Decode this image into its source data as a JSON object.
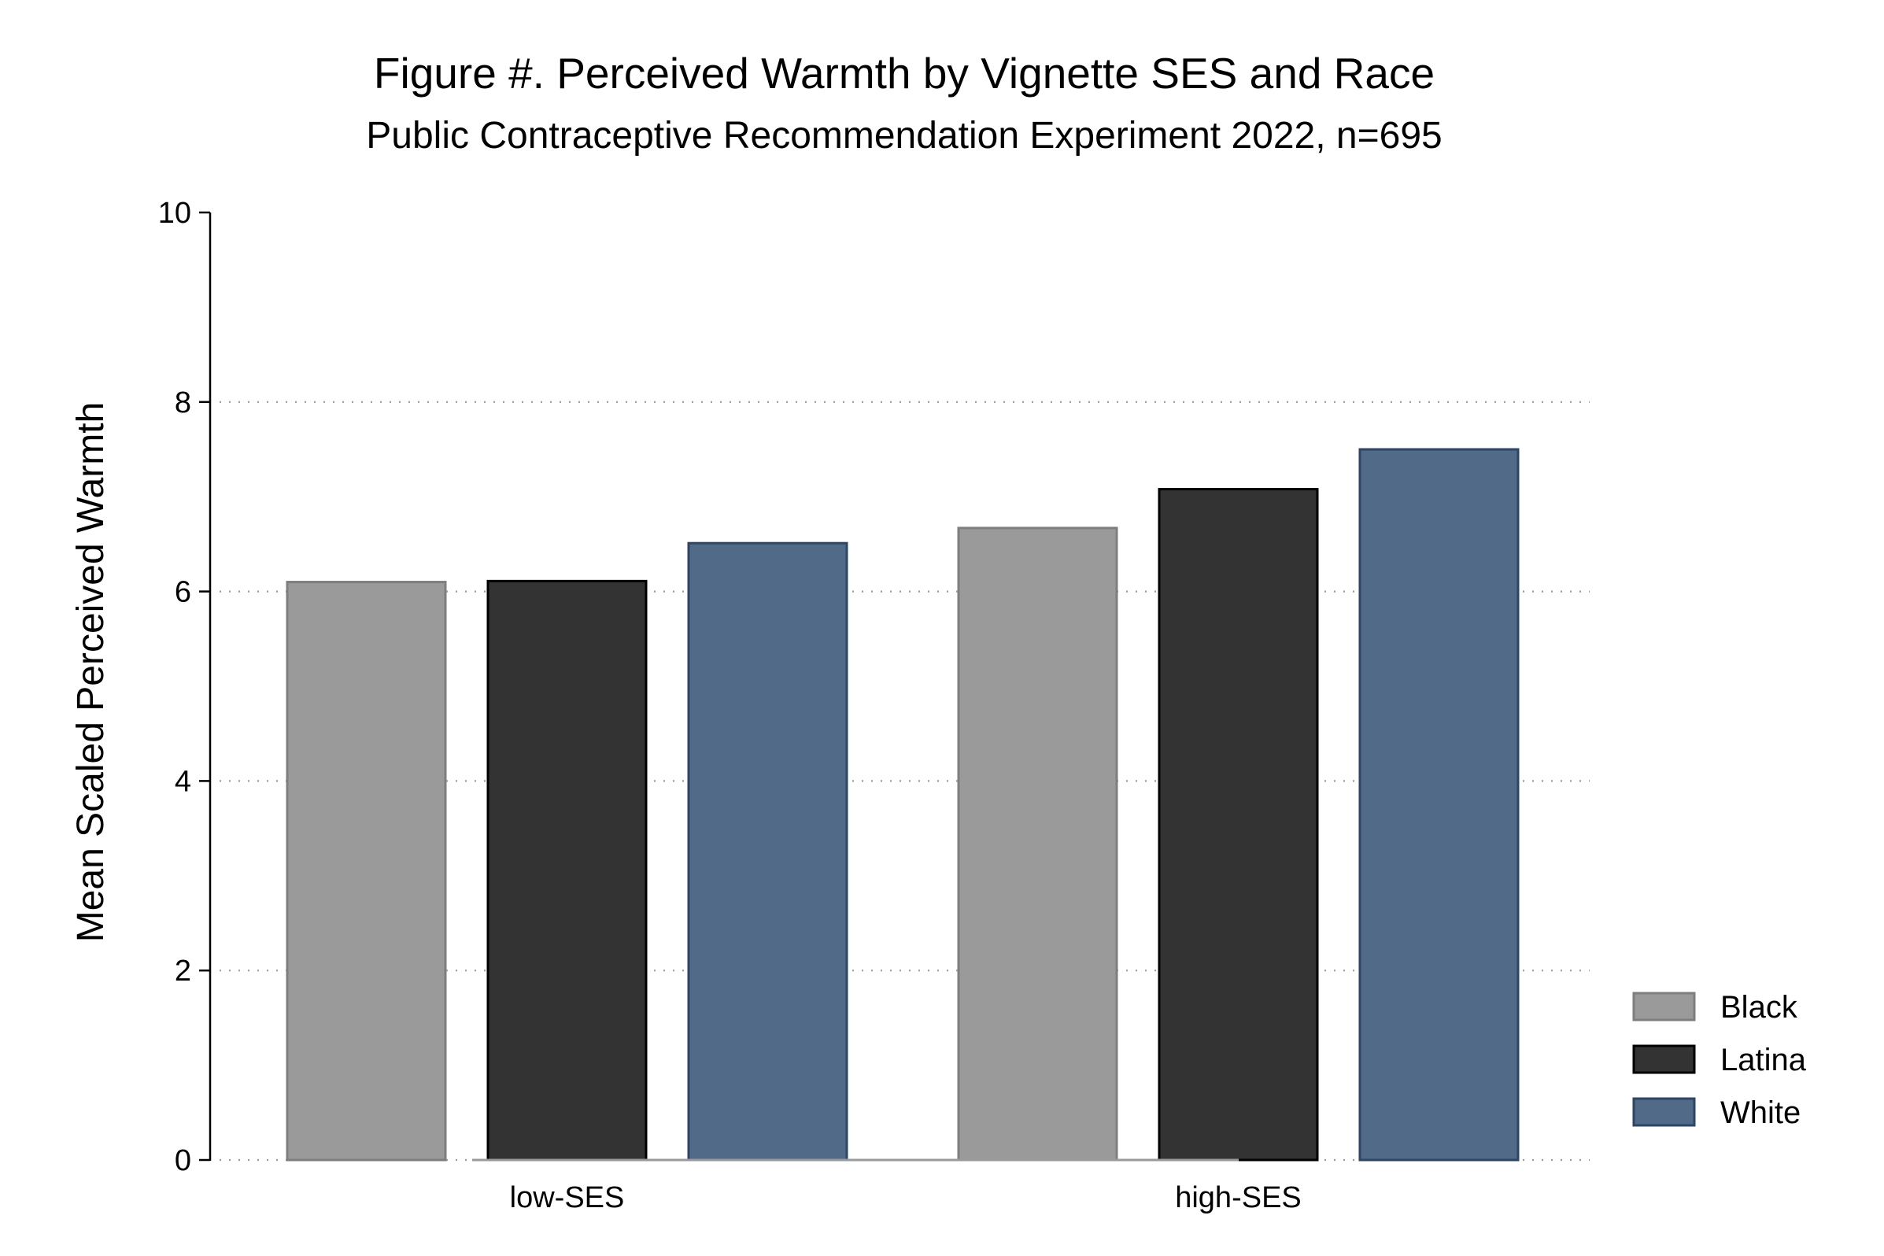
{
  "chart_data": {
    "type": "bar",
    "title": "Figure #. Perceived Warmth by Vignette SES and Race",
    "subtitle": "Public Contraceptive Recommendation Experiment 2022, n=695",
    "xlabel": "",
    "ylabel": "Mean Scaled Perceived Warmth",
    "categories": [
      "low-SES",
      "high-SES"
    ],
    "yticks": [
      "0",
      "2",
      "4",
      "6",
      "8",
      "10"
    ],
    "ylim": [
      0,
      10
    ],
    "grid": true,
    "legend_position": "right",
    "series": [
      {
        "name": "Black",
        "values": [
          6.1,
          6.67
        ],
        "color": "#9a9a9a",
        "stroke": "#7e7e7e"
      },
      {
        "name": "Latina",
        "values": [
          6.11,
          7.08
        ],
        "color": "#333333",
        "stroke": "#000000"
      },
      {
        "name": "White",
        "values": [
          6.51,
          7.5
        ],
        "color": "#506a88",
        "stroke": "#2d4566"
      }
    ]
  }
}
